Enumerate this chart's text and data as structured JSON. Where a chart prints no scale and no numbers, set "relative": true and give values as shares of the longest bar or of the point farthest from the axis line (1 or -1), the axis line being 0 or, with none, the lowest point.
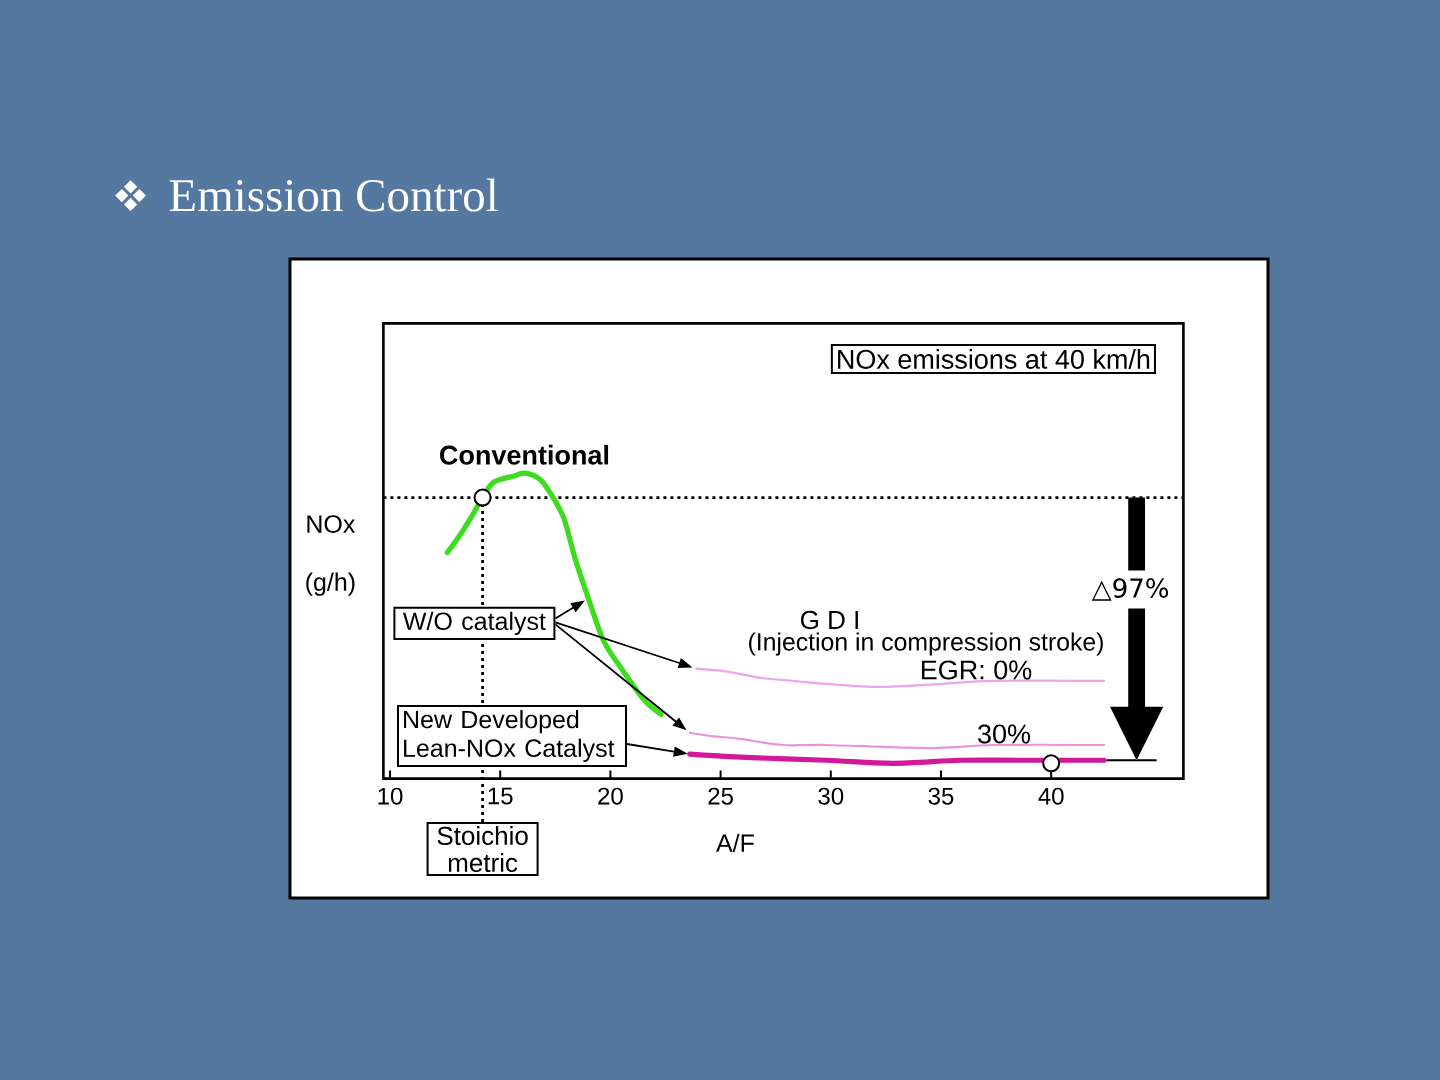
{
  "chart_data": {
    "type": "line",
    "title": "Emission Control",
    "xlabel": "A/F",
    "ylabel": "NOx (g/h)",
    "relative": true,
    "xlim": [
      9.7,
      46
    ],
    "xticks": [
      10,
      15,
      20,
      25,
      30,
      35,
      40
    ],
    "series": [
      {
        "name": "Conventional",
        "color": "#3ddc1f",
        "x": [
          12.6,
          13.2,
          13.8,
          14.2,
          14.7,
          15.6,
          16.1,
          16.8,
          17.4,
          17.9,
          18.4,
          19.0,
          19.7,
          20.6,
          21.5,
          22.3
        ],
        "values": [
          0.74,
          0.8,
          0.87,
          0.92,
          0.97,
          0.99,
          1.0,
          0.98,
          0.92,
          0.85,
          0.72,
          0.59,
          0.45,
          0.35,
          0.26,
          0.21
        ]
      },
      {
        "name": "EGR: 0%",
        "color": "#f0a3e8",
        "x": [
          23.9,
          25.3,
          26.8,
          28.3,
          29.8,
          32.2,
          35.0,
          37.4,
          42.4
        ],
        "values": [
          0.36,
          0.35,
          0.33,
          0.32,
          0.31,
          0.3,
          0.31,
          0.32,
          0.32
        ]
      },
      {
        "name": "30%",
        "color": "#e993dd",
        "x": [
          23.6,
          24.5,
          25.9,
          27.8,
          29.8,
          34.4,
          37.4,
          42.4
        ],
        "values": [
          0.15,
          0.14,
          0.13,
          0.11,
          0.11,
          0.1,
          0.11,
          0.11
        ]
      },
      {
        "color": "#d4189c",
        "x": [
          23.6,
          25.9,
          29.8,
          32.8,
          35.9,
          38.6,
          42.4
        ],
        "values": [
          0.08,
          0.07,
          0.06,
          0.05,
          0.06,
          0.06,
          0.06
        ]
      },
      {
        "type": "scatter",
        "color": "#000000",
        "marker": "circle",
        "x": [
          14.2,
          40.0
        ],
        "values": [
          0.92,
          0.05
        ]
      }
    ],
    "ref_lines": [
      {
        "axis": "y",
        "value": 0.92,
        "line_style": "dotted",
        "color": "#000000"
      },
      {
        "axis": "x",
        "value": 14.2,
        "label": "Stoichio metric",
        "line_style": "dotted",
        "color": "#000000"
      }
    ],
    "annotations": [
      "NOx emissions at 40 km/h",
      "W/O catalyst",
      "G D I",
      "(Injection in compression stroke)",
      "△97%",
      "New Developed Lean-NOx Catalyst"
    ]
  }
}
